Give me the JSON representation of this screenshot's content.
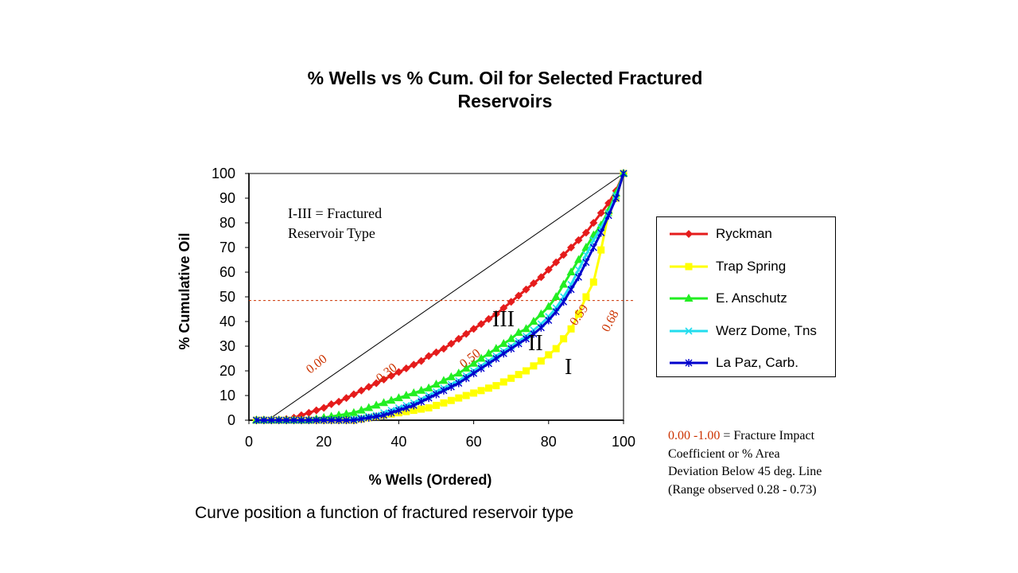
{
  "title_line1": "% Wells vs % Cum. Oil for Selected Fractured",
  "title_line2": "Reservoirs",
  "caption": "Curve position a function of fractured reservoir type",
  "footnote": {
    "coef": "0.00 -1.00",
    "rest": " = Fracture Impact",
    "line2": "Coefficient or % Area",
    "line3": "Deviation Below 45 deg. Line",
    "line4": "(Range observed 0.28 - 0.73)"
  },
  "colors": {
    "ryckman": "#e51c1c",
    "trap_spring": "#ffff00",
    "anschutz": "#22ee22",
    "werz": "#22ddee",
    "lapaz": "#0000cc",
    "coefficient_text": "#cc3300",
    "threshold_line": "#cc3300"
  },
  "chart_data": {
    "type": "line",
    "xlabel": "% Wells (Ordered)",
    "ylabel": "% Cumulative Oil",
    "xlim": [
      0,
      100
    ],
    "ylim": [
      0,
      100
    ],
    "xticks": [
      0,
      20,
      40,
      60,
      80,
      100
    ],
    "yticks": [
      0,
      10,
      20,
      30,
      40,
      50,
      60,
      70,
      80,
      90,
      100
    ],
    "grid": false,
    "legend_position": "right",
    "reference_line": {
      "from": [
        5,
        0
      ],
      "to": [
        100,
        100
      ]
    },
    "threshold_y": 48.5,
    "annotations": {
      "type_box_line1": "I-III  = Fractured",
      "type_box_line2": "Reservoir Type",
      "type_I": "I",
      "type_II": "II",
      "type_III": "III",
      "coef_000": "0.00",
      "coef_030": "0.30",
      "coef_050": "0.50",
      "coef_059": "0.59",
      "coef_068": "0.68"
    },
    "series": [
      {
        "name": "Ryckman",
        "marker": "diamond",
        "color": "#e51c1c",
        "x": [
          2,
          4,
          6,
          8,
          10,
          12,
          14,
          16,
          18,
          20,
          22,
          24,
          26,
          28,
          30,
          32,
          34,
          36,
          38,
          40,
          42,
          44,
          46,
          48,
          50,
          52,
          54,
          56,
          58,
          60,
          62,
          64,
          66,
          68,
          70,
          72,
          74,
          76,
          78,
          80,
          82,
          84,
          86,
          88,
          90,
          92,
          94,
          96,
          98,
          100
        ],
        "y": [
          0,
          0,
          0,
          0,
          0.5,
          1,
          2,
          3,
          4,
          5,
          6.5,
          7.5,
          9,
          10.5,
          12,
          13.5,
          15,
          16.5,
          18,
          19.5,
          21,
          22.5,
          24,
          26,
          27.5,
          29,
          31,
          33,
          35,
          37,
          39,
          41,
          43,
          45.5,
          48,
          50.5,
          53,
          55.5,
          58,
          61,
          64,
          67,
          70,
          73,
          76,
          80,
          84,
          88,
          93,
          100
        ]
      },
      {
        "name": "Trap Spring",
        "marker": "square",
        "color": "#ffff00",
        "x": [
          2,
          4,
          6,
          8,
          10,
          12,
          14,
          16,
          18,
          20,
          22,
          24,
          26,
          28,
          30,
          32,
          34,
          36,
          38,
          40,
          42,
          44,
          46,
          48,
          50,
          52,
          54,
          56,
          58,
          60,
          62,
          64,
          66,
          68,
          70,
          72,
          74,
          76,
          78,
          80,
          82,
          84,
          86,
          88,
          90,
          92,
          94,
          96,
          98,
          100
        ],
        "y": [
          0,
          0,
          0,
          0,
          0,
          0,
          0,
          0,
          0,
          0,
          0,
          0,
          0,
          0,
          0.5,
          1,
          1.5,
          2,
          2.5,
          3,
          3.5,
          4,
          4.5,
          5,
          6,
          7,
          8,
          9,
          10,
          11,
          12,
          13,
          14,
          15.5,
          17,
          18.5,
          20,
          22,
          24,
          26.5,
          29,
          33,
          37,
          43,
          50,
          56,
          69,
          84,
          90,
          100
        ]
      },
      {
        "name": "E. Anschutz",
        "marker": "triangle",
        "color": "#22ee22",
        "x": [
          2,
          4,
          6,
          8,
          10,
          12,
          14,
          16,
          18,
          20,
          22,
          24,
          26,
          28,
          30,
          32,
          34,
          36,
          38,
          40,
          42,
          44,
          46,
          48,
          50,
          52,
          54,
          56,
          58,
          60,
          62,
          64,
          66,
          68,
          70,
          72,
          74,
          76,
          78,
          80,
          82,
          84,
          86,
          88,
          90,
          92,
          94,
          96,
          98,
          100
        ],
        "y": [
          0,
          0,
          0,
          0,
          0,
          0,
          0,
          0,
          0.5,
          1,
          1.5,
          2,
          2.5,
          3,
          4,
          5,
          6,
          7,
          8,
          9,
          10,
          11,
          12,
          13,
          14.5,
          16,
          17.5,
          19,
          21,
          23,
          25,
          27,
          29,
          31,
          33,
          35.5,
          37,
          40,
          43,
          46,
          50,
          55,
          60,
          65,
          70,
          75,
          79,
          85,
          92,
          100
        ]
      },
      {
        "name": "Werz Dome, Tns",
        "marker": "x",
        "color": "#22ddee",
        "x": [
          2,
          4,
          6,
          8,
          10,
          12,
          14,
          16,
          18,
          20,
          22,
          24,
          26,
          28,
          30,
          32,
          34,
          36,
          38,
          40,
          42,
          44,
          46,
          48,
          50,
          52,
          54,
          56,
          58,
          60,
          62,
          64,
          66,
          68,
          70,
          72,
          74,
          76,
          78,
          80,
          82,
          84,
          86,
          88,
          90,
          92,
          94,
          96,
          98,
          100
        ],
        "y": [
          0,
          0,
          0,
          0,
          0,
          0,
          0,
          0,
          0,
          0,
          0,
          0,
          0,
          0.5,
          1,
          1.5,
          2,
          3,
          4,
          5,
          6,
          7,
          8.5,
          10,
          11.5,
          13,
          14.5,
          16,
          18,
          20,
          22,
          24,
          26,
          28,
          30,
          32,
          34,
          36.5,
          39,
          42,
          45.5,
          50,
          55,
          61,
          67,
          73,
          78,
          84,
          91,
          100
        ]
      },
      {
        "name": "La Paz, Carb.",
        "marker": "star",
        "color": "#0000cc",
        "x": [
          2,
          4,
          6,
          8,
          10,
          12,
          14,
          16,
          18,
          20,
          22,
          24,
          26,
          28,
          30,
          32,
          34,
          36,
          38,
          40,
          42,
          44,
          46,
          48,
          50,
          52,
          54,
          56,
          58,
          60,
          62,
          64,
          66,
          68,
          70,
          72,
          74,
          76,
          78,
          80,
          82,
          84,
          86,
          88,
          90,
          92,
          94,
          96,
          98,
          100
        ],
        "y": [
          0,
          0,
          0,
          0,
          0,
          0,
          0,
          0,
          0,
          0,
          0,
          0,
          0,
          0,
          0.5,
          1,
          1.5,
          2,
          3,
          4,
          5,
          6,
          7.5,
          9,
          10.5,
          12,
          13.5,
          15,
          17,
          19,
          21,
          23,
          25,
          27,
          29,
          31,
          33,
          35,
          37.5,
          40.5,
          44,
          48,
          53,
          58,
          64,
          70,
          76,
          83,
          90,
          100
        ]
      }
    ]
  }
}
